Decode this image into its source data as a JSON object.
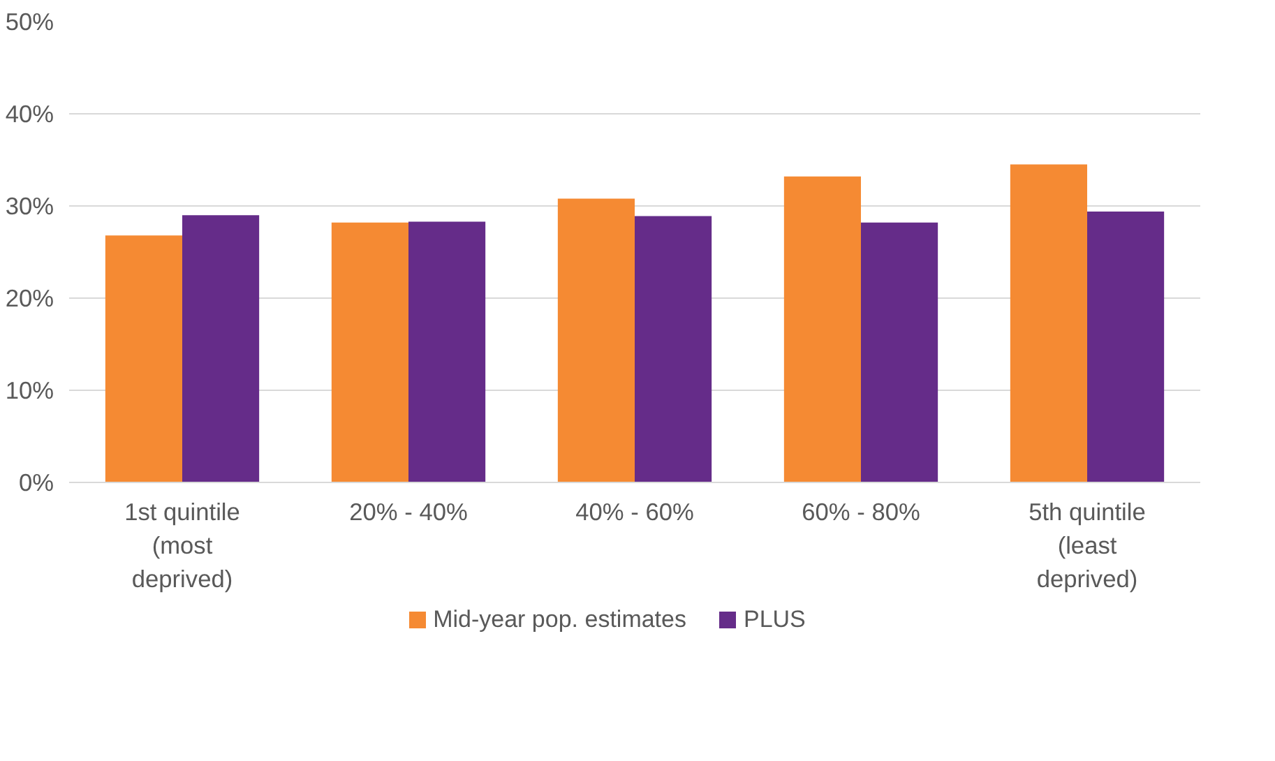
{
  "chart_data": {
    "type": "bar",
    "categories": [
      "1st quintile (most deprived)",
      "20% - 40%",
      "40% - 60%",
      "60% - 80%",
      "5th quintile (least deprived)"
    ],
    "series": [
      {
        "name": "Mid-year pop. estimates",
        "color": "#f58a33",
        "values": [
          26.8,
          28.2,
          30.8,
          33.2,
          34.5
        ]
      },
      {
        "name": "PLUS",
        "color": "#652c89",
        "values": [
          29.0,
          28.3,
          28.9,
          28.2,
          29.4
        ]
      }
    ],
    "ylim": [
      0,
      50
    ],
    "yticks": [
      {
        "value": 0,
        "label": "0%"
      },
      {
        "value": 10,
        "label": "10%"
      },
      {
        "value": 20,
        "label": "20%"
      },
      {
        "value": 30,
        "label": "30%"
      },
      {
        "value": 40,
        "label": "40%"
      },
      {
        "value": 50,
        "label": "50%"
      }
    ],
    "grid": "y",
    "legend": "bottom"
  }
}
